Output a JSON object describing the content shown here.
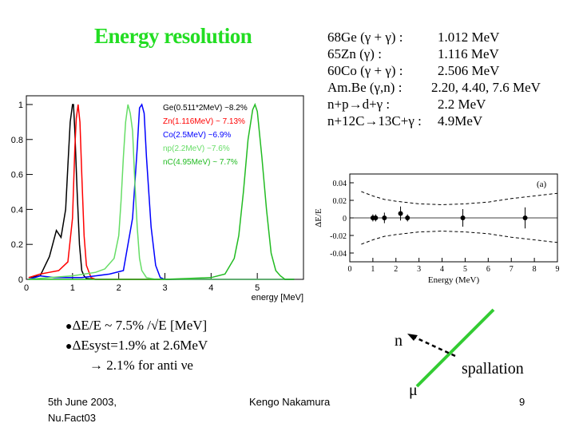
{
  "slide": {
    "title": "Energy resolution",
    "sources": [
      {
        "label": "68Ge (γ + γ) :",
        "value": "1.012 MeV"
      },
      {
        "label": "65Zn (γ) :",
        "value": "1.116 MeV"
      },
      {
        "label": "60Co (γ + γ) :",
        "value": "2.506 MeV"
      },
      {
        "label": "Am.Be (γ,n) :",
        "value": "2.20, 4.40, 7.6 MeV"
      },
      {
        "label": "n+p→d+γ :",
        "value": "2.2 MeV"
      },
      {
        "label": "n+12C→13C+γ :",
        "value": "4.9MeV"
      }
    ],
    "notes": {
      "line1": "ΔE/E ~ 7.5% /√E [MeV]",
      "line2": "ΔEsyst=1.9% at 2.6MeV",
      "line3": "→ 2.1% for anti νe"
    },
    "footer": {
      "date_line1": "5th June 2003,",
      "date_line2": "Nu.Fact03",
      "author": "Kengo Nakamura",
      "page": "9"
    },
    "diagram": {
      "n_label": "n",
      "spallation_label": "spallation",
      "mu_label": "μ"
    },
    "colors": {
      "title": "#22dd22",
      "ge": "#000000",
      "zn": "#ff0000",
      "co": "#0000ff",
      "np": "#66dd66",
      "nc": "#22bb22"
    }
  },
  "chart_data": [
    {
      "type": "line",
      "title": "",
      "xlabel": "energy [MeV]",
      "ylabel": "",
      "xlim": [
        0,
        6
      ],
      "ylim": [
        0,
        1.05
      ],
      "x_ticks": [
        0,
        1,
        2,
        3,
        4,
        5
      ],
      "y_ticks": [
        0,
        0.2,
        0.4,
        0.6,
        0.8,
        1
      ],
      "legend": [
        {
          "name": "Ge(0.511*2MeV) ~8.2%",
          "color": "#000000"
        },
        {
          "name": "Zn(1.116MeV) ~ 7.13%",
          "color": "#ff0000"
        },
        {
          "name": "Co(2.5MeV) ~6.9%",
          "color": "#0000ff"
        },
        {
          "name": "np(2.2MeV) ~7.6%",
          "color": "#66dd66"
        },
        {
          "name": "nC(4.95MeV) ~ 7.7%",
          "color": "#22bb22"
        }
      ],
      "series": [
        {
          "name": "Ge",
          "peak_energy": 1.02,
          "x": [
            0.05,
            0.3,
            0.5,
            0.65,
            0.75,
            0.8,
            0.85,
            0.9,
            0.95,
            1.0,
            1.02,
            1.05,
            1.1,
            1.15,
            1.2,
            1.25,
            1.3,
            1.5,
            2.0,
            3.0,
            5.8
          ],
          "y": [
            0.01,
            0.02,
            0.13,
            0.28,
            0.24,
            0.32,
            0.4,
            0.65,
            0.9,
            1.0,
            1.0,
            0.85,
            0.5,
            0.2,
            0.05,
            0.02,
            0.005,
            0.0,
            0.0,
            0.0,
            0.0
          ]
        },
        {
          "name": "Zn",
          "peak_energy": 1.12,
          "x": [
            0.05,
            0.3,
            0.5,
            0.7,
            0.9,
            1.0,
            1.05,
            1.08,
            1.12,
            1.16,
            1.2,
            1.25,
            1.3,
            1.4,
            1.5,
            2.0,
            5.8
          ],
          "y": [
            0.01,
            0.03,
            0.04,
            0.05,
            0.1,
            0.35,
            0.75,
            0.92,
            1.0,
            0.9,
            0.6,
            0.25,
            0.08,
            0.01,
            0.0,
            0.0,
            0.0
          ]
        },
        {
          "name": "Co",
          "peak_energy": 2.5,
          "x": [
            0.05,
            0.3,
            0.6,
            0.9,
            1.2,
            1.5,
            1.8,
            2.1,
            2.3,
            2.4,
            2.45,
            2.5,
            2.55,
            2.6,
            2.7,
            2.8,
            2.9,
            3.0,
            5.8
          ],
          "y": [
            0.0,
            0.02,
            0.01,
            0.01,
            0.01,
            0.02,
            0.03,
            0.05,
            0.35,
            0.75,
            0.98,
            1.0,
            0.95,
            0.7,
            0.3,
            0.08,
            0.01,
            0.0,
            0.0
          ]
        },
        {
          "name": "np",
          "peak_energy": 2.2,
          "x": [
            0.05,
            0.5,
            1.0,
            1.5,
            1.7,
            1.9,
            2.0,
            2.05,
            2.1,
            2.15,
            2.2,
            2.25,
            2.3,
            2.35,
            2.4,
            2.45,
            2.5,
            2.6,
            2.8,
            5.8
          ],
          "y": [
            0.0,
            0.01,
            0.02,
            0.04,
            0.06,
            0.12,
            0.25,
            0.45,
            0.7,
            0.9,
            1.0,
            0.95,
            0.85,
            0.55,
            0.3,
            0.12,
            0.05,
            0.01,
            0.0,
            0.0
          ]
        },
        {
          "name": "nC",
          "peak_energy": 4.95,
          "x": [
            0.05,
            3.0,
            4.0,
            4.3,
            4.5,
            4.6,
            4.7,
            4.8,
            4.9,
            4.95,
            5.0,
            5.1,
            5.2,
            5.3,
            5.4,
            5.5,
            5.6,
            5.8
          ],
          "y": [
            0.0,
            0.0,
            0.01,
            0.03,
            0.12,
            0.25,
            0.5,
            0.8,
            0.97,
            1.0,
            0.96,
            0.7,
            0.4,
            0.15,
            0.05,
            0.02,
            0.0,
            0.0
          ]
        }
      ]
    },
    {
      "type": "scatter",
      "title": "(a)",
      "xlabel": "Energy (MeV)",
      "ylabel": "ΔE/E",
      "xlim": [
        0,
        9
      ],
      "ylim": [
        -0.05,
        0.05
      ],
      "x_ticks": [
        0,
        1,
        2,
        3,
        4,
        5,
        6,
        7,
        8,
        9
      ],
      "y_ticks": [
        -0.04,
        -0.02,
        0,
        0.02,
        0.04
      ],
      "points": {
        "x": [
          1.0,
          1.12,
          1.5,
          2.2,
          2.5,
          4.9,
          7.6
        ],
        "y": [
          0.0,
          0.0,
          0.0,
          0.005,
          0.0,
          0.0,
          0.0
        ],
        "err": [
          0.004,
          0.004,
          0.006,
          0.008,
          0.004,
          0.01,
          0.012
        ]
      },
      "envelope": {
        "x": [
          0.5,
          1,
          1.5,
          2,
          3,
          4,
          5,
          6,
          7,
          8,
          9
        ],
        "upper": [
          0.03,
          0.025,
          0.021,
          0.019,
          0.016,
          0.015,
          0.016,
          0.018,
          0.022,
          0.025,
          0.028
        ]
      }
    }
  ]
}
